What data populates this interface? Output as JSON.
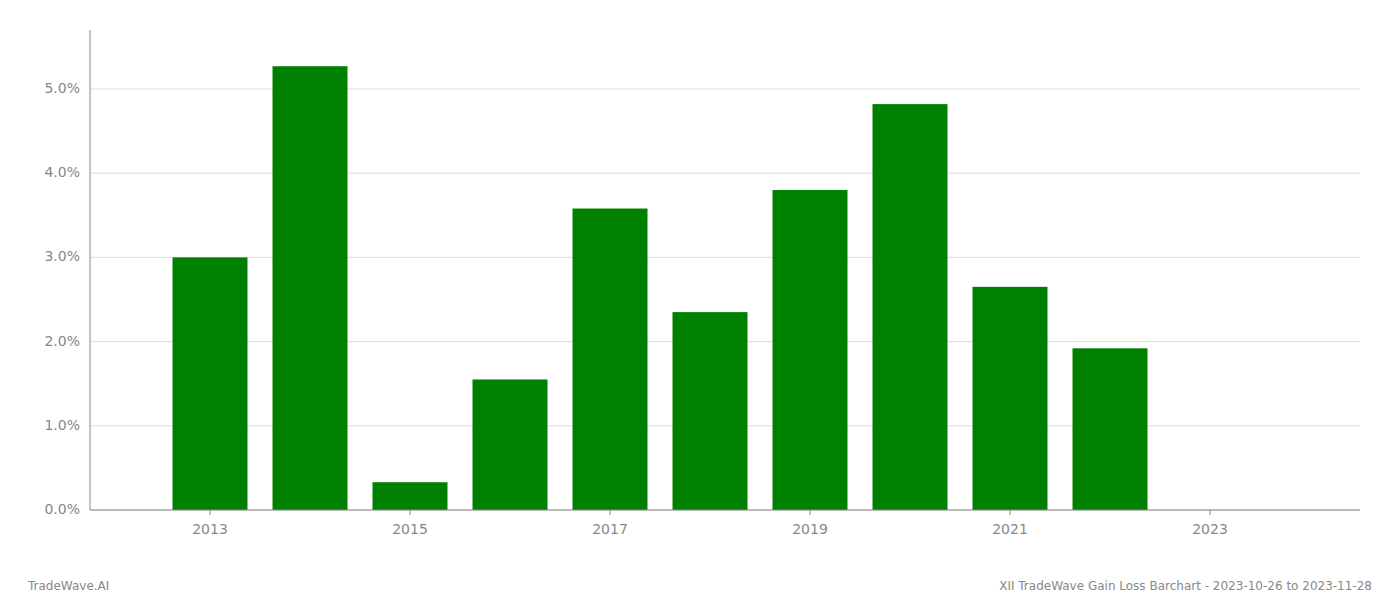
{
  "chart_data": {
    "type": "bar",
    "x": [
      2013,
      2014,
      2015,
      2016,
      2017,
      2018,
      2019,
      2020,
      2021,
      2022
    ],
    "values": [
      0.03,
      0.0527,
      0.0033,
      0.0155,
      0.0358,
      0.0235,
      0.038,
      0.0482,
      0.0265,
      0.0192
    ],
    "color": "#008000",
    "xlim": [
      2011.8,
      2024.5
    ],
    "xticks": [
      2013,
      2015,
      2017,
      2019,
      2021,
      2023
    ],
    "ylim": [
      0,
      0.057
    ],
    "yticks": [
      {
        "value": 0,
        "label": "0.0%"
      },
      {
        "value": 0.01,
        "label": "1.0%"
      },
      {
        "value": 0.02,
        "label": "2.0%"
      },
      {
        "value": 0.03,
        "label": "3.0%"
      },
      {
        "value": 0.04,
        "label": "4.0%"
      },
      {
        "value": 0.05,
        "label": "5.0%"
      }
    ],
    "grid": true,
    "annotations": [
      "TradeWave.AI",
      "XII TradeWave Gain Loss Barchart - 2023-10-26 to 2023-11-28"
    ]
  }
}
